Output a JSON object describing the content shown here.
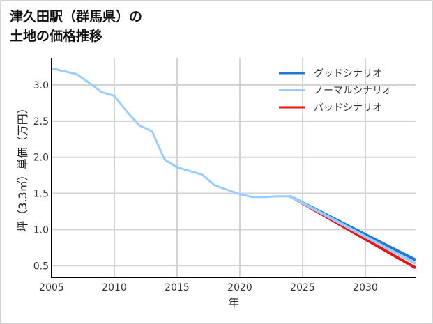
{
  "title": {
    "line1": "津久田駅（群馬県）の",
    "line2": "土地の価格推移"
  },
  "colors": {
    "good": "#1f77d0",
    "normal": "#99ccff",
    "bad": "#ee1111",
    "grid": "#d3d3d3",
    "axis": "#000000"
  },
  "chart_data": {
    "type": "line",
    "title": "津久田駅（群馬県）の土地の価格推移",
    "xlabel": "年",
    "ylabel": "坪（3.3㎡）単価（万円）",
    "xlim": [
      2005,
      2034
    ],
    "ylim": [
      0.35,
      3.38
    ],
    "xticks": [
      2005,
      2010,
      2015,
      2020,
      2025,
      2030
    ],
    "yticks": [
      0.5,
      1.0,
      1.5,
      2.0,
      2.5,
      3.0
    ],
    "ytick_labels": [
      "0.5",
      "1.0",
      "1.5",
      "2.0",
      "2.5",
      "3.0"
    ],
    "grid": true,
    "legend_position": "upper right",
    "legend": [
      "グッドシナリオ",
      "ノーマルシナリオ",
      "バッドシナリオ"
    ],
    "historical": {
      "name": "ノーマルシナリオ",
      "x": [
        2005,
        2007,
        2008,
        2009,
        2010,
        2011,
        2012,
        2013,
        2014,
        2015,
        2017,
        2018,
        2019,
        2020,
        2021,
        2022,
        2023,
        2024
      ],
      "y": [
        3.23,
        3.15,
        3.03,
        2.9,
        2.85,
        2.63,
        2.44,
        2.36,
        1.97,
        1.86,
        1.76,
        1.61,
        1.55,
        1.49,
        1.45,
        1.45,
        1.46,
        1.46
      ]
    },
    "series": [
      {
        "name": "グッドシナリオ",
        "color": "#1f77d0",
        "x": [
          2024,
          2034
        ],
        "y": [
          1.46,
          0.58
        ]
      },
      {
        "name": "ノーマルシナリオ",
        "color": "#99ccff",
        "x": [
          2024,
          2034
        ],
        "y": [
          1.46,
          0.53
        ]
      },
      {
        "name": "バッドシナリオ",
        "color": "#ee1111",
        "x": [
          2024,
          2034
        ],
        "y": [
          1.46,
          0.47
        ]
      }
    ]
  }
}
